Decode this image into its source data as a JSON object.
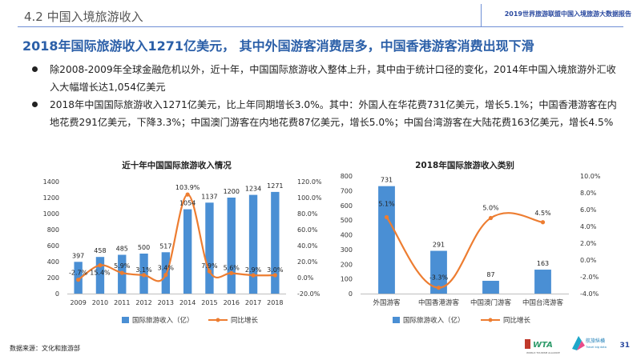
{
  "header": {
    "section_title": "4.2 中国入境旅游收入",
    "report_name": "2019世界旅游联盟中国入境旅游大数据报告"
  },
  "headline": "2018年国际旅游收入1271亿美元， 其中外国游客消费居多，中国香港游客消费出现下滑",
  "bullets": [
    "除2008-2009年全球金融危机以外，近十年，中国国际旅游收入整体上升，其中由于统计口径的变化，2014年中国入境旅游外汇收入大幅增长达1,054亿美元",
    "2018年中国国际旅游收入1271亿美元，比上年同期增长3.0%。其中：外国人在华花费731亿美元，增长5.1%；中国香港游客在内地花费291亿美元，下降3.3%；中国澳门游客在内地花费87亿美元，增长5.0%；中国台湾游客在大陆花费163亿美元，增长4.5%"
  ],
  "colors": {
    "bar": "#4a8fd4",
    "line": "#ed7d31",
    "accent": "#2b5fa8"
  },
  "chart_data": [
    {
      "type": "bar+line",
      "title": "近十年中国国际旅游收入情况",
      "categories": [
        "2009",
        "2010",
        "2011",
        "2012",
        "2013",
        "2014",
        "2015",
        "2016",
        "2017",
        "2018"
      ],
      "series": [
        {
          "name": "国际旅游收入（亿）",
          "type": "bar",
          "axis": "left",
          "values": [
            397,
            458,
            485,
            500,
            517,
            1054,
            1137,
            1200,
            1234,
            1271
          ]
        },
        {
          "name": "同比增长",
          "type": "line",
          "axis": "right",
          "values": [
            -2.7,
            15.4,
            5.9,
            3.1,
            3.4,
            103.9,
            7.9,
            5.6,
            2.9,
            3.0
          ]
        }
      ],
      "value_labels": [
        "397",
        "458",
        "485",
        "500",
        "517",
        "1054",
        "1137",
        "1200",
        "1234",
        "1271"
      ],
      "pct_labels": [
        "-2.7%",
        "15.4%",
        "5.9%",
        "3.1%",
        "3.4%",
        "103.9%",
        "7.9%",
        "5.6%",
        "2.9%",
        "3.0%"
      ],
      "ylim_left": [
        0,
        1400
      ],
      "yticks_left": [
        "0",
        "200",
        "400",
        "600",
        "800",
        "1000",
        "1200",
        "1400"
      ],
      "ylim_right": [
        -20,
        120
      ],
      "yticks_right": [
        "-20.0%",
        "0.0%",
        "20.0%",
        "40.0%",
        "60.0%",
        "80.0%",
        "100.0%",
        "120.0%"
      ],
      "legend_position": "bottom"
    },
    {
      "type": "bar+line",
      "title": "2018年国际旅游收入类别",
      "categories": [
        "外国游客",
        "中国香港游客",
        "中国澳门游客",
        "中国台湾游客"
      ],
      "series": [
        {
          "name": "国际旅游收入（亿）",
          "type": "bar",
          "axis": "left",
          "values": [
            731,
            291,
            87,
            163
          ]
        },
        {
          "name": "同比增长",
          "type": "line",
          "axis": "right",
          "values": [
            5.1,
            -3.3,
            5.0,
            4.5
          ]
        }
      ],
      "value_labels": [
        "731",
        "291",
        "87",
        "163"
      ],
      "pct_labels": [
        "5.1%",
        "-3.3%",
        "5.0%",
        "4.5%"
      ],
      "ylim_left": [
        0,
        800
      ],
      "yticks_left": [
        "0",
        "100",
        "200",
        "300",
        "400",
        "500",
        "600",
        "700",
        "800"
      ],
      "ylim_right": [
        -4,
        10
      ],
      "yticks_right": [
        "-4.0%",
        "-2.0%",
        "0.0%",
        "2.0%",
        "4.0%",
        "6.0%",
        "8.0%",
        "10.0%"
      ],
      "legend_position": "bottom"
    }
  ],
  "footer": {
    "source": "数据来源：文化和旅游部",
    "page_number": "31",
    "logo_a_text": "WTA",
    "logo_a_sub": "WORLD TOURISM ALLIANCE",
    "logo_b_text": "航旅纵横",
    "logo_b_sub": "Travel big data"
  }
}
